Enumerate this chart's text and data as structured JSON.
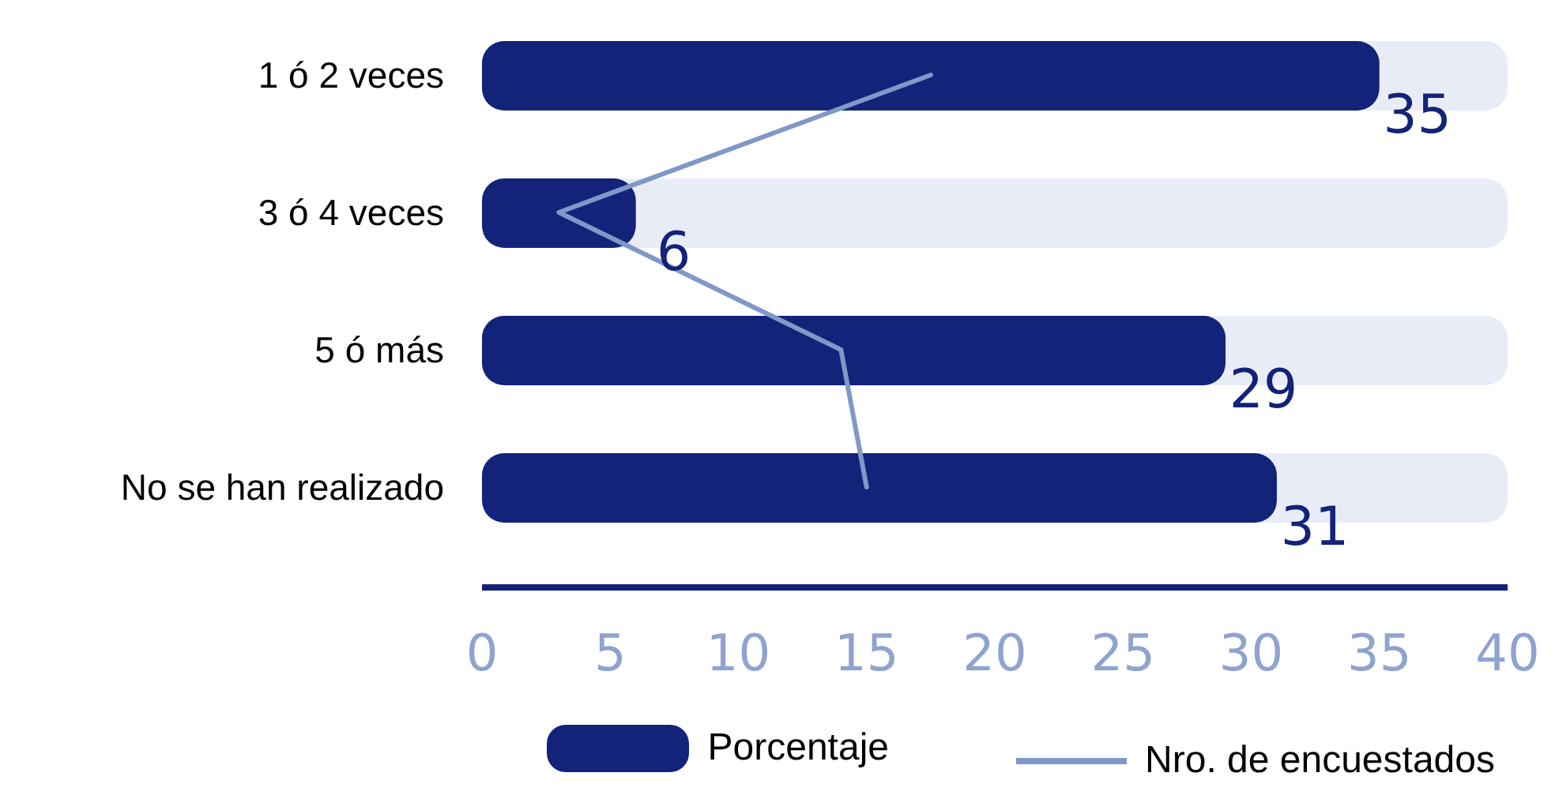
{
  "chart_data": {
    "type": "bar",
    "orientation": "horizontal",
    "categories": [
      "1 ó 2 veces",
      "3 ó 4 veces",
      "5 ó más",
      "No se han realizado"
    ],
    "series": [
      {
        "name": "Porcentaje",
        "type": "bar",
        "color": "#13237a",
        "values": [
          35,
          6,
          29,
          31
        ],
        "value_labels": [
          "35",
          "6",
          "29",
          "31"
        ]
      },
      {
        "name": "Nro. de encuestados",
        "type": "line",
        "color": "#7f98c8",
        "values": [
          17.5,
          3,
          14,
          15
        ]
      }
    ],
    "xlim": [
      0,
      40
    ],
    "xticks": [
      0,
      5,
      10,
      15,
      20,
      25,
      30,
      35,
      40
    ],
    "grid": false,
    "legend": "bottom",
    "marker": "none",
    "line_style": "solid"
  }
}
